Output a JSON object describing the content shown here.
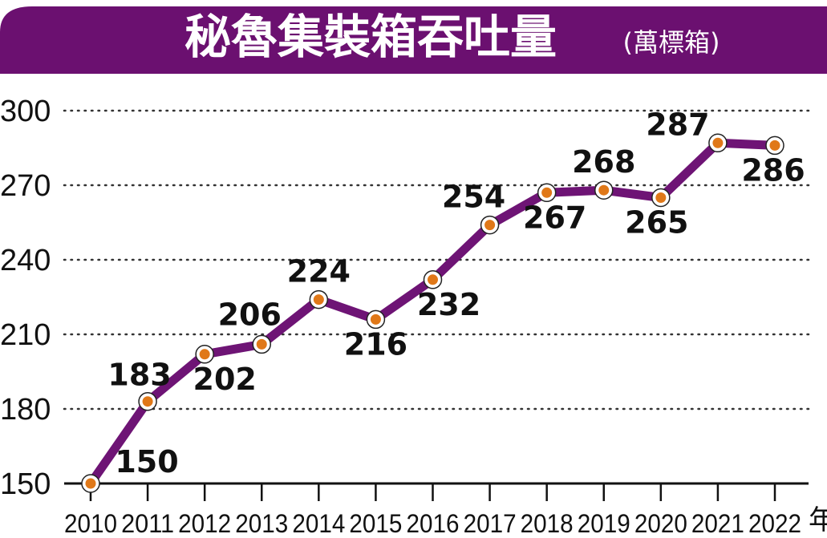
{
  "colors": {
    "banner": "#6b1070",
    "line": "#6e1475",
    "marker_fill": "#e07818",
    "grid": "#333333",
    "axis": "#111111",
    "text": "#111111"
  },
  "chart_data": {
    "type": "line",
    "title": "秘魯集裝箱吞吐量",
    "unit": "(萬標箱)",
    "x_suffix": "年",
    "x": [
      "2010",
      "2011",
      "2012",
      "2013",
      "2014",
      "2015",
      "2016",
      "2017",
      "2018",
      "2019",
      "2020",
      "2021",
      "2022"
    ],
    "series": [
      {
        "values": [
          150,
          183,
          202,
          206,
          224,
          216,
          232,
          254,
          267,
          268,
          265,
          287,
          286
        ],
        "labels": [
          "150",
          "183",
          "202",
          "206",
          "224",
          "216",
          "232",
          "254",
          "267",
          "268",
          "265",
          "287",
          "286"
        ]
      }
    ],
    "y_ticks": [
      "150",
      "180",
      "210",
      "240",
      "270",
      "300"
    ],
    "ylim": [
      150,
      300
    ],
    "grid": true
  }
}
